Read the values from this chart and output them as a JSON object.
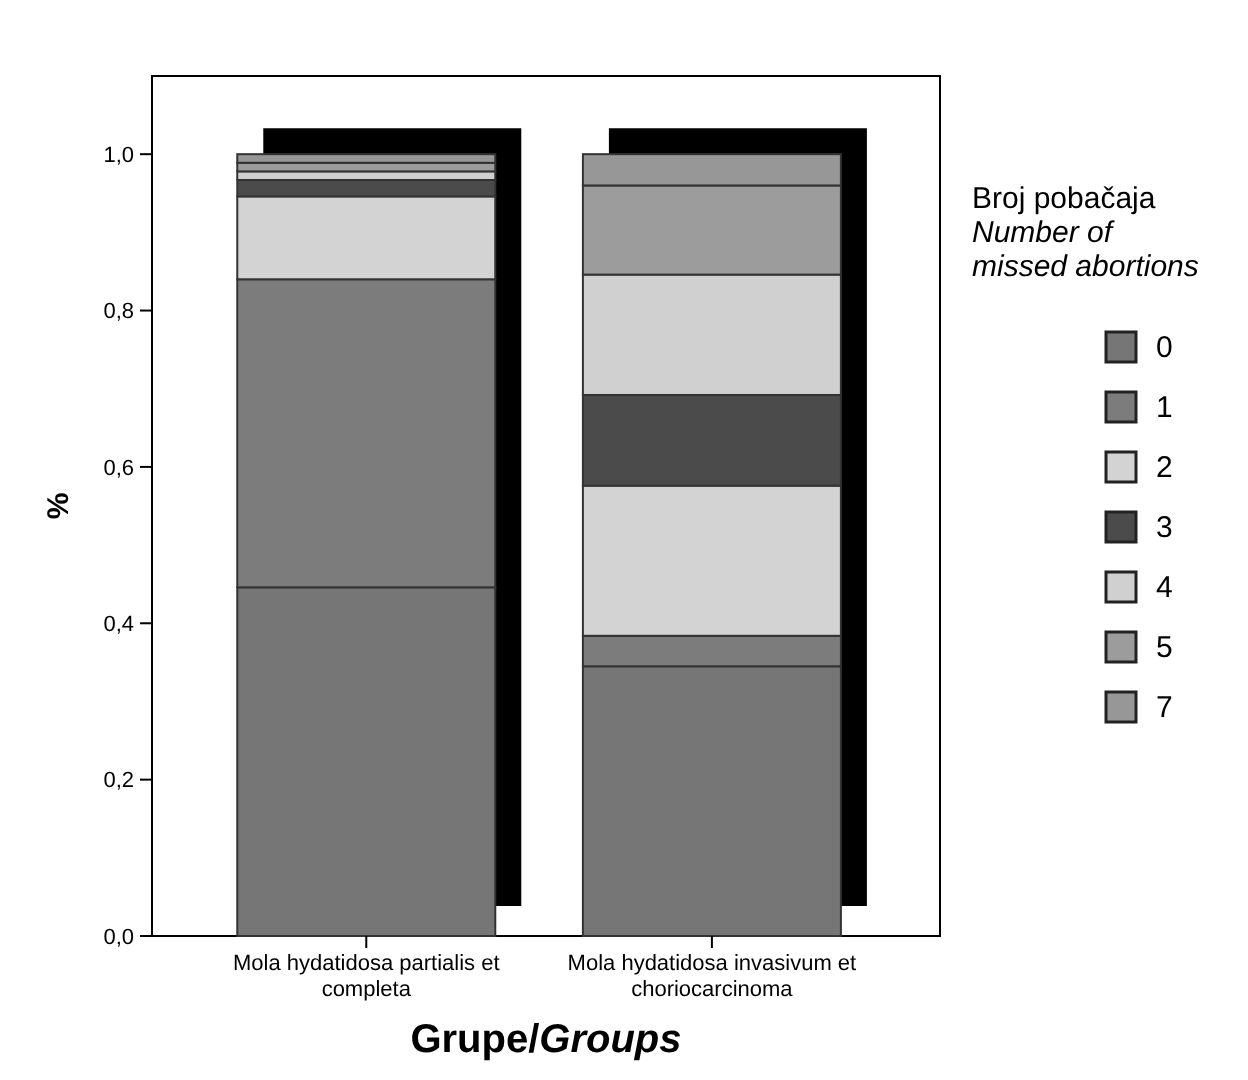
{
  "chart_data": {
    "type": "bar",
    "stacked": true,
    "categories": [
      "Mola hydatidosa partialis et completa",
      "Mola hydatidosa invasivum et choriocarcinoma"
    ],
    "series": [
      {
        "name": "0",
        "color": "#767676",
        "values": [
          0.446,
          0.345
        ]
      },
      {
        "name": "1",
        "color": "#7c7c7c",
        "values": [
          0.394,
          0.039
        ]
      },
      {
        "name": "2",
        "color": "#d3d3d3",
        "values": [
          0.106,
          0.192
        ]
      },
      {
        "name": "3",
        "color": "#4b4b4b",
        "values": [
          0.021,
          0.116
        ]
      },
      {
        "name": "4",
        "color": "#d0d0d0",
        "values": [
          0.011,
          0.154
        ]
      },
      {
        "name": "5",
        "color": "#9c9c9c",
        "values": [
          0.011,
          0.114
        ]
      },
      {
        "name": "7",
        "color": "#979797",
        "values": [
          0.011,
          0.04
        ]
      }
    ],
    "ylim": [
      0,
      1.1
    ],
    "yticks": [
      {
        "value": 0,
        "label": "0,0"
      },
      {
        "value": 0.2,
        "label": "0,2"
      },
      {
        "value": 0.4,
        "label": "0,4"
      },
      {
        "value": 0.6,
        "label": "0,6"
      },
      {
        "value": 0.8,
        "label": "0,8"
      },
      {
        "value": 1,
        "label": "1,0"
      }
    ],
    "ylabel": "%",
    "xlabel": "Grupe/Groups",
    "legend_title": "Broj pobačaja\nNumber of\nmissed abortions",
    "legend": "right",
    "grid": false
  }
}
